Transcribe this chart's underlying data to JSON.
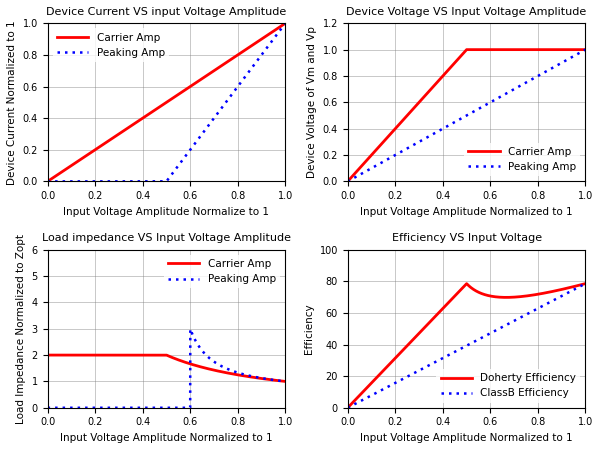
{
  "fig_size": [
    6.0,
    4.5
  ],
  "dpi": 100,
  "background_color": "#ffffff",
  "subplot1": {
    "title": "Device Current VS input Voltage Amplitude",
    "xlabel": "Input Voltage Amplitude Normalize to 1",
    "ylabel": "Device Current Normalized to 1",
    "xlim": [
      0,
      1
    ],
    "ylim": [
      0,
      1
    ],
    "yticks": [
      0.0,
      0.2,
      0.4,
      0.6,
      0.8,
      1.0
    ],
    "xticks": [
      0.0,
      0.2,
      0.4,
      0.6,
      0.8,
      1.0
    ],
    "carrier_color": "red",
    "peaking_color": "blue",
    "legend_labels": [
      "Carrier Amp",
      "Peaking Amp"
    ]
  },
  "subplot2": {
    "title": "Device Voltage VS Input Voltage Amplitude",
    "xlabel": "Input Voltage Amplitude Normalized to 1",
    "ylabel": "Device Voltage of Vm and Vp",
    "xlim": [
      0,
      1
    ],
    "ylim": [
      0,
      1.2
    ],
    "yticks": [
      0.0,
      0.2,
      0.4,
      0.6,
      0.8,
      1.0,
      1.2
    ],
    "xticks": [
      0.0,
      0.2,
      0.4,
      0.6,
      0.8,
      1.0
    ],
    "carrier_color": "red",
    "peaking_color": "blue",
    "legend_labels": [
      "Carrier Amp",
      "Peaking Amp"
    ]
  },
  "subplot3": {
    "title": "Load impedance VS Input Voltage Amplitude",
    "xlabel": "Input Voltage Amplitude Normalized to 1",
    "ylabel": "Load Impedance Normalized to Zopt",
    "xlim": [
      0,
      1
    ],
    "ylim": [
      0,
      6
    ],
    "yticks": [
      0,
      1,
      2,
      3,
      4,
      5,
      6
    ],
    "xticks": [
      0.0,
      0.2,
      0.4,
      0.6,
      0.8,
      1.0
    ],
    "carrier_color": "red",
    "peaking_color": "blue",
    "legend_labels": [
      "Carrier Amp",
      "Peaking Amp"
    ],
    "peaking_threshold": 0.6
  },
  "subplot4": {
    "title": "Efficiency VS Input Voltage",
    "xlabel": "Input Voltage Amplitude Normalized to 1",
    "ylabel": "Efficiency",
    "xlim": [
      0,
      1
    ],
    "ylim": [
      0,
      100
    ],
    "yticks": [
      0,
      20,
      40,
      60,
      80,
      100
    ],
    "xticks": [
      0.0,
      0.2,
      0.4,
      0.6,
      0.8,
      1.0
    ],
    "doherty_color": "red",
    "classb_color": "blue",
    "legend_labels": [
      "Doherty Efficiency",
      "ClassB Efficiency"
    ]
  }
}
